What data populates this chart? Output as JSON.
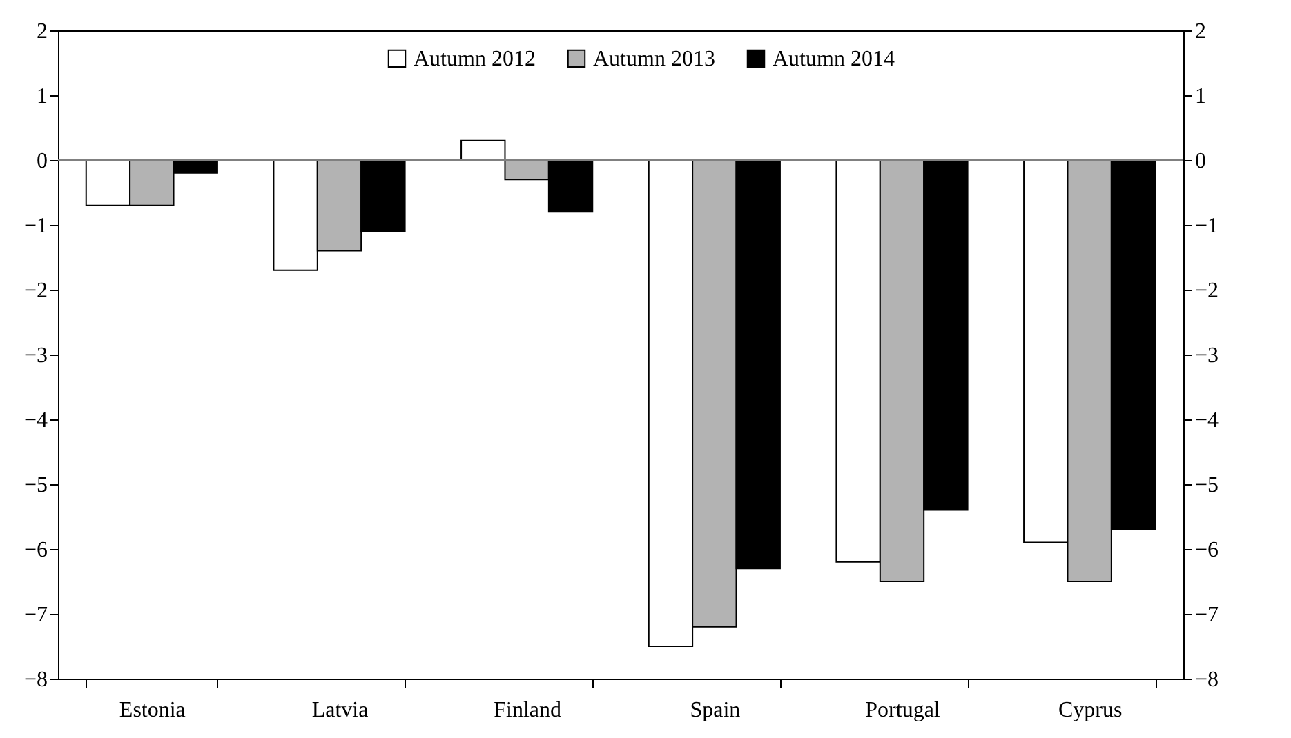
{
  "chart_data": {
    "type": "bar",
    "categories": [
      "Estonia",
      "Latvia",
      "Finland",
      "Spain",
      "Portugal",
      "Cyprus"
    ],
    "series": [
      {
        "name": "Autumn 2012",
        "color": "#ffffff",
        "values": [
          -0.7,
          -1.7,
          0.3,
          -7.5,
          -6.2,
          -5.9
        ]
      },
      {
        "name": "Autumn 2013",
        "color": "#b3b3b3",
        "values": [
          -0.7,
          -1.4,
          -0.3,
          -7.2,
          -6.5,
          -6.5
        ]
      },
      {
        "name": "Autumn 2014",
        "color": "#000000",
        "values": [
          -0.2,
          -1.1,
          -0.8,
          -6.3,
          -5.4,
          -5.7
        ]
      }
    ],
    "ylim": [
      -8,
      2
    ],
    "yticks": [
      -8,
      -7,
      -6,
      -5,
      -4,
      -3,
      -2,
      -1,
      0,
      1,
      2
    ],
    "y2lim": [
      -8,
      2
    ],
    "y2ticks": [
      -8,
      -7,
      -6,
      -5,
      -4,
      -3,
      -2,
      -1,
      0,
      1,
      2
    ],
    "ref_lines": [
      {
        "axis": "y2",
        "value": 0,
        "color": "#808080"
      }
    ],
    "legend": "top"
  }
}
